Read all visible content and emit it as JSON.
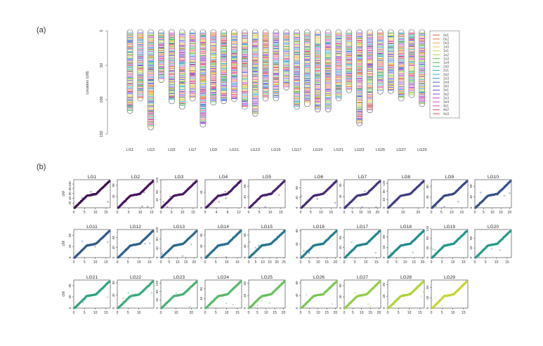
{
  "panel_a": {
    "label": "(a)",
    "ylabel": "Location (cM)",
    "yticks": [
      0,
      50,
      100,
      150
    ],
    "ylim": [
      0,
      150
    ],
    "groups": [
      {
        "name": "LG1",
        "length": 118
      },
      {
        "name": "LG2",
        "length": 100
      },
      {
        "name": "LG3",
        "length": 142
      },
      {
        "name": "LG4",
        "length": 73
      },
      {
        "name": "LG5",
        "length": 104
      },
      {
        "name": "LG6",
        "length": 112
      },
      {
        "name": "LG7",
        "length": 100
      },
      {
        "name": "LG8",
        "length": 138
      },
      {
        "name": "LG9",
        "length": 106
      },
      {
        "name": "LG10",
        "length": 104
      },
      {
        "name": "LG11",
        "length": 101
      },
      {
        "name": "LG12",
        "length": 112
      },
      {
        "name": "LG13",
        "length": 122
      },
      {
        "name": "LG14",
        "length": 100
      },
      {
        "name": "LG15",
        "length": 100
      },
      {
        "name": "LG16",
        "length": 84
      },
      {
        "name": "LG17",
        "length": 112
      },
      {
        "name": "LG18",
        "length": 108
      },
      {
        "name": "LG19",
        "length": 116
      },
      {
        "name": "LG20",
        "length": 116
      },
      {
        "name": "LG21",
        "length": 100
      },
      {
        "name": "LG22",
        "length": 88
      },
      {
        "name": "LG23",
        "length": 136
      },
      {
        "name": "LG24",
        "length": 117
      },
      {
        "name": "LG25",
        "length": 90
      },
      {
        "name": "LG26",
        "length": 89
      },
      {
        "name": "LG27",
        "length": 100
      },
      {
        "name": "LG28",
        "length": 95
      },
      {
        "name": "LG29",
        "length": 108
      }
    ],
    "xtick_labels": [
      "LG1",
      "LG3",
      "LG5",
      "LG7",
      "LG9",
      "LG11",
      "LG13",
      "LG15",
      "LG17",
      "LG19",
      "LG21",
      "LG23",
      "LG25",
      "LG27",
      "LG29"
    ],
    "legend": [
      {
        "label": "0x1",
        "color": "#e8524a"
      },
      {
        "label": "0x2",
        "color": "#ef7a3a"
      },
      {
        "label": "0x3",
        "color": "#f2a03c"
      },
      {
        "label": "1x0",
        "color": "#e8c43a"
      },
      {
        "label": "1x1",
        "color": "#d4d436"
      },
      {
        "label": "1x2",
        "color": "#a6cf38"
      },
      {
        "label": "1x3",
        "color": "#6cc43e"
      },
      {
        "label": "1x4",
        "color": "#3fb84a"
      },
      {
        "label": "2x0",
        "color": "#33b07a"
      },
      {
        "label": "2x1",
        "color": "#2fb3a8"
      },
      {
        "label": "2x2",
        "color": "#2ea9cf"
      },
      {
        "label": "2x3",
        "color": "#3b8fe0"
      },
      {
        "label": "2x4",
        "color": "#3a6de3"
      },
      {
        "label": "3x0",
        "color": "#4b4fdb"
      },
      {
        "label": "3x1",
        "color": "#6f45d8"
      },
      {
        "label": "3x2",
        "color": "#9446d6"
      },
      {
        "label": "3x3",
        "color": "#b94ad2"
      },
      {
        "label": "3x4",
        "color": "#d94bc3"
      },
      {
        "label": "4x1",
        "color": "#e84aa1"
      },
      {
        "label": "4x2",
        "color": "#ea4a7e"
      },
      {
        "label": "4x3",
        "color": "#e8485f"
      }
    ]
  },
  "panel_b": {
    "label": "(b)",
    "ylabel": "cM",
    "chart_data": [
      {
        "type": "scatter",
        "title": "LG1",
        "xticks": [
          0,
          5,
          10,
          15
        ],
        "yticks": [
          20,
          40,
          60,
          80,
          100
        ],
        "xlim": [
          0,
          17
        ],
        "ylim": [
          0,
          118
        ],
        "color": "#3b0f4f"
      },
      {
        "type": "scatter",
        "title": "LG2",
        "xticks": [
          0,
          5,
          10,
          15
        ],
        "yticks": [
          40,
          80
        ],
        "xlim": [
          0,
          16
        ],
        "ylim": [
          0,
          100
        ],
        "color": "#45105a"
      },
      {
        "type": "scatter",
        "title": "LG3",
        "xticks": [
          0,
          5,
          10,
          15
        ],
        "yticks": [
          40,
          80,
          140
        ],
        "xlim": [
          0,
          17
        ],
        "ylim": [
          0,
          142
        ],
        "color": "#461661"
      },
      {
        "type": "scatter",
        "title": "LG4",
        "xticks": [
          0,
          4,
          8,
          12
        ],
        "yticks": [
          0,
          40
        ],
        "xlim": [
          0,
          13
        ],
        "ylim": [
          0,
          73
        ],
        "color": "#471a6a"
      },
      {
        "type": "scatter",
        "title": "LG5",
        "xticks": [
          0,
          5,
          10,
          15
        ],
        "yticks": [
          0,
          40,
          80
        ],
        "xlim": [
          0,
          17
        ],
        "ylim": [
          0,
          104
        ],
        "color": "#47226f"
      },
      {
        "type": "scatter",
        "title": "LG6",
        "xticks": [
          0,
          5,
          10,
          15
        ],
        "yticks": [
          0,
          40,
          80
        ],
        "xlim": [
          0,
          18
        ],
        "ylim": [
          0,
          112
        ],
        "color": "#452a78"
      },
      {
        "type": "scatter",
        "title": "LG7",
        "xticks": [
          0,
          5,
          10,
          15,
          20
        ],
        "yticks": [
          0,
          40,
          80
        ],
        "xlim": [
          0,
          22
        ],
        "ylim": [
          0,
          100
        ],
        "color": "#42347f"
      },
      {
        "type": "scatter",
        "title": "LG8",
        "xticks": [
          0,
          10,
          20
        ],
        "yticks": [
          0,
          40,
          80,
          120
        ],
        "xlim": [
          0,
          24
        ],
        "ylim": [
          0,
          138
        ],
        "color": "#3e3d84"
      },
      {
        "type": "scatter",
        "title": "LG9",
        "xticks": [
          0,
          5,
          10,
          15
        ],
        "yticks": [
          0,
          40,
          80
        ],
        "xlim": [
          0,
          18
        ],
        "ylim": [
          0,
          106
        ],
        "color": "#3a4687"
      },
      {
        "type": "scatter",
        "title": "LG10",
        "xticks": [
          0,
          5,
          10,
          15,
          20
        ],
        "yticks": [
          0,
          40,
          80
        ],
        "xlim": [
          0,
          21
        ],
        "ylim": [
          0,
          104
        ],
        "color": "#354f89"
      },
      {
        "type": "scatter",
        "title": "LG11",
        "xticks": [
          0,
          5,
          10,
          15
        ],
        "yticks": [
          0,
          40,
          80
        ],
        "xlim": [
          0,
          17
        ],
        "ylim": [
          0,
          101
        ],
        "color": "#31578b"
      },
      {
        "type": "scatter",
        "title": "LG12",
        "xticks": [
          0,
          5,
          10,
          15
        ],
        "yticks": [
          0,
          40,
          80
        ],
        "xlim": [
          0,
          17
        ],
        "ylim": [
          0,
          112
        ],
        "color": "#2d5f8c"
      },
      {
        "type": "scatter",
        "title": "LG13",
        "xticks": [
          0,
          5,
          10,
          15,
          20
        ],
        "yticks": [
          0,
          40,
          80,
          120
        ],
        "xlim": [
          0,
          22
        ],
        "ylim": [
          0,
          122
        ],
        "color": "#2a678d"
      },
      {
        "type": "scatter",
        "title": "LG14",
        "xticks": [
          0,
          5,
          10,
          15
        ],
        "yticks": [
          0,
          40,
          80
        ],
        "xlim": [
          0,
          17
        ],
        "ylim": [
          0,
          100
        ],
        "color": "#276e8e"
      },
      {
        "type": "scatter",
        "title": "LG15",
        "xticks": [
          0,
          5,
          10,
          15,
          20,
          25
        ],
        "yticks": [
          0,
          40,
          80
        ],
        "xlim": [
          0,
          26
        ],
        "ylim": [
          0,
          100
        ],
        "color": "#24768e"
      },
      {
        "type": "scatter",
        "title": "LG16",
        "xticks": [
          0,
          5,
          10,
          15,
          20
        ],
        "yticks": [
          0,
          40,
          80
        ],
        "xlim": [
          0,
          21
        ],
        "ylim": [
          0,
          84
        ],
        "color": "#217d8e"
      },
      {
        "type": "scatter",
        "title": "LG17",
        "xticks": [
          0,
          5,
          10,
          15
        ],
        "yticks": [
          0,
          40,
          80
        ],
        "xlim": [
          0,
          17
        ],
        "ylim": [
          0,
          112
        ],
        "color": "#1f858d"
      },
      {
        "type": "scatter",
        "title": "LG18",
        "xticks": [
          0,
          5,
          10,
          15,
          20
        ],
        "yticks": [
          0,
          40,
          80
        ],
        "xlim": [
          0,
          21
        ],
        "ylim": [
          0,
          108
        ],
        "color": "#1f8c8b"
      },
      {
        "type": "scatter",
        "title": "LG19",
        "xticks": [
          0,
          5,
          10,
          15
        ],
        "yticks": [
          0,
          40,
          80,
          120
        ],
        "xlim": [
          0,
          17
        ],
        "ylim": [
          0,
          116
        ],
        "color": "#21948a"
      },
      {
        "type": "scatter",
        "title": "LG20",
        "xticks": [
          0,
          5,
          10,
          15
        ],
        "yticks": [
          0,
          40,
          80
        ],
        "xlim": [
          0,
          17
        ],
        "ylim": [
          0,
          116
        ],
        "color": "#269b87"
      },
      {
        "type": "scatter",
        "title": "LG21",
        "xticks": [
          0,
          5,
          10,
          15
        ],
        "yticks": [
          0,
          40,
          80
        ],
        "xlim": [
          0,
          17
        ],
        "ylim": [
          0,
          100
        ],
        "color": "#2fa282"
      },
      {
        "type": "scatter",
        "title": "LG22",
        "xticks": [
          0,
          5,
          10
        ],
        "yticks": [
          0,
          40,
          80
        ],
        "xlim": [
          0,
          17
        ],
        "ylim": [
          0,
          88
        ],
        "color": "#3aaa7c"
      },
      {
        "type": "scatter",
        "title": "LG23",
        "xticks": [
          0,
          10,
          20
        ],
        "yticks": [
          0,
          40,
          80,
          120
        ],
        "xlim": [
          0,
          24
        ],
        "ylim": [
          0,
          136
        ],
        "color": "#47b174"
      },
      {
        "type": "scatter",
        "title": "LG24",
        "xticks": [
          0,
          5,
          10,
          15
        ],
        "yticks": [
          0,
          40,
          80
        ],
        "xlim": [
          0,
          17
        ],
        "ylim": [
          0,
          117
        ],
        "color": "#56b86b"
      },
      {
        "type": "scatter",
        "title": "LG25",
        "xticks": [
          0,
          5,
          10,
          15,
          20
        ],
        "yticks": [
          0,
          40,
          80
        ],
        "xlim": [
          0,
          21
        ],
        "ylim": [
          0,
          90
        ],
        "color": "#68bf5f"
      },
      {
        "type": "scatter",
        "title": "LG26",
        "xticks": [
          0,
          5,
          10,
          15,
          20
        ],
        "yticks": [
          0,
          40,
          80
        ],
        "xlim": [
          0,
          21
        ],
        "ylim": [
          0,
          89
        ],
        "color": "#7bc653"
      },
      {
        "type": "scatter",
        "title": "LG27",
        "xticks": [
          0,
          5,
          10,
          15,
          20
        ],
        "yticks": [
          0,
          40,
          80
        ],
        "xlim": [
          0,
          21
        ],
        "ylim": [
          0,
          100
        ],
        "color": "#94cc45"
      },
      {
        "type": "scatter",
        "title": "LG28",
        "xticks": [
          0,
          5,
          10,
          15
        ],
        "yticks": [
          0,
          40,
          80
        ],
        "xlim": [
          0,
          17
        ],
        "ylim": [
          0,
          95
        ],
        "color": "#aed139"
      },
      {
        "type": "scatter",
        "title": "LG29",
        "xticks": [
          0,
          5,
          10,
          15
        ],
        "yticks": [
          0,
          40,
          80
        ],
        "xlim": [
          0,
          17
        ],
        "ylim": [
          0,
          108
        ],
        "color": "#c7d62f"
      }
    ]
  }
}
